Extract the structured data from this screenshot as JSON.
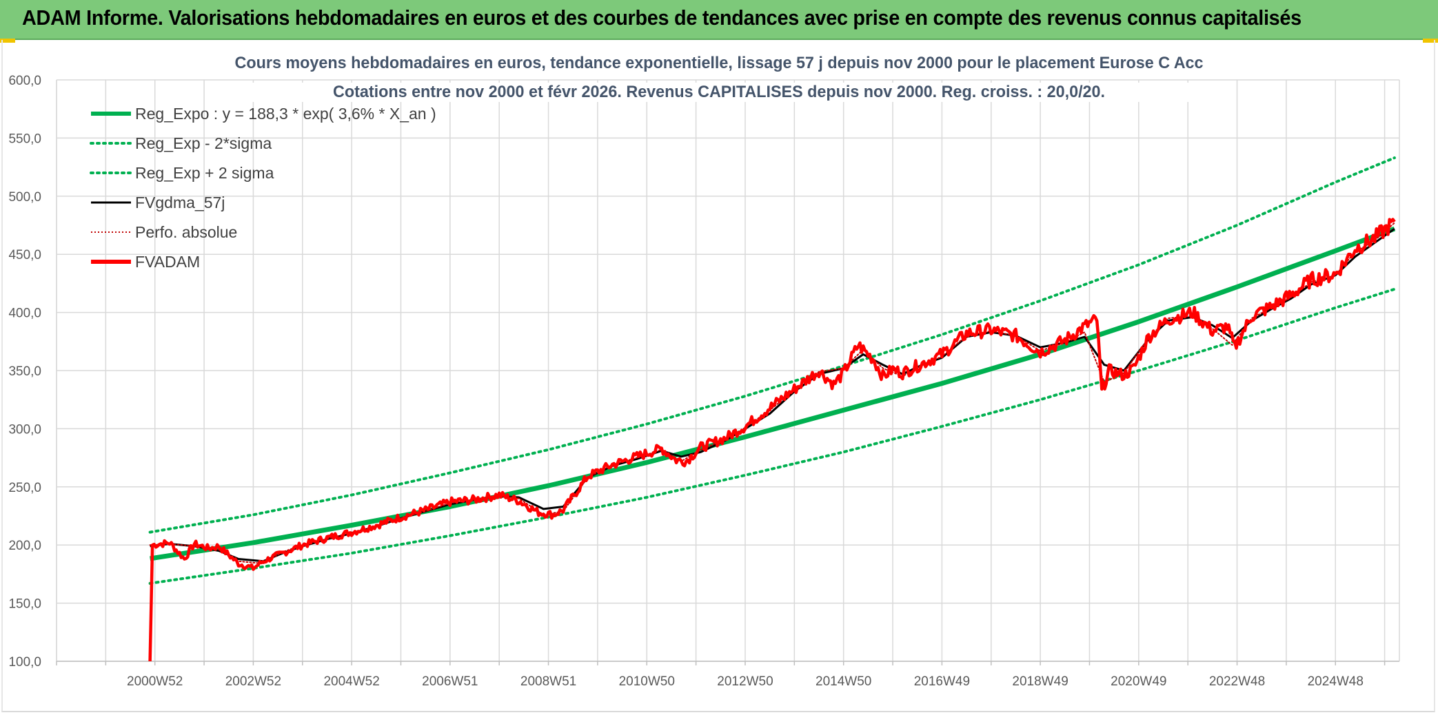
{
  "banner": {
    "title": "ADAM Informe. Valorisations hebdomadaires en euros et des courbes de tendances avec prise en compte des revenus connus capitalisés"
  },
  "colors": {
    "banner_bg": "#7dc97a",
    "trend": "#00b050",
    "band": "#00b050",
    "smoothed": "#000000",
    "perf": "#c00000",
    "fvadam": "#ff0000",
    "grid": "#d9d9d9"
  },
  "chart_data": {
    "type": "line",
    "title_lines": [
      "Cours moyens hebdomadaires en euros, tendance exponentielle, lissage 57 j depuis nov 2000 pour le placement Eurose C Acc",
      "Cotations entre nov 2000 et févr 2026. Revenus CAPITALISES depuis nov 2000. Reg. croiss. : 20,0/20."
    ],
    "ylim": [
      100,
      600
    ],
    "y_ticks": [
      "100,0",
      "150,0",
      "200,0",
      "250,0",
      "300,0",
      "350,0",
      "400,0",
      "450,0",
      "500,0",
      "550,0",
      "600,0"
    ],
    "xlim": [
      1999.0,
      2026.3
    ],
    "x_ticks": [
      {
        "label": "2000W52",
        "x": 2001.0
      },
      {
        "label": "2002W52",
        "x": 2003.0
      },
      {
        "label": "2004W52",
        "x": 2005.0
      },
      {
        "label": "2006W51",
        "x": 2007.0
      },
      {
        "label": "2008W51",
        "x": 2009.0
      },
      {
        "label": "2010W50",
        "x": 2011.0
      },
      {
        "label": "2012W50",
        "x": 2013.0
      },
      {
        "label": "2014W50",
        "x": 2015.0
      },
      {
        "label": "2016W49",
        "x": 2017.0
      },
      {
        "label": "2018W49",
        "x": 2019.0
      },
      {
        "label": "2020W49",
        "x": 2021.0
      },
      {
        "label": "2022W48",
        "x": 2023.0
      },
      {
        "label": "2024W48",
        "x": 2025.0
      }
    ],
    "legend": [
      {
        "label": "Reg_Expo : y = 188,3 * exp( 3,6% *  X_an )",
        "style": "thick",
        "color": "#00b050"
      },
      {
        "label": "Reg_Exp - 2*sigma",
        "style": "dotted",
        "color": "#00b050"
      },
      {
        "label": "Reg_Exp + 2 sigma",
        "style": "dotted",
        "color": "#00b050"
      },
      {
        "label": "FVgdma_57j",
        "style": "solid",
        "color": "#000000"
      },
      {
        "label": "Perfo. absolue",
        "style": "dotted-thin",
        "color": "#c00000"
      },
      {
        "label": "FVADAM",
        "style": "thick",
        "color": "#ff0000"
      }
    ],
    "series": [
      {
        "name": "Reg_Expo : y = 188,3 * exp( 3,6% *  X_an )",
        "x": [
          2000.9,
          2003.0,
          2005.0,
          2007.0,
          2009.0,
          2011.0,
          2013.0,
          2015.0,
          2017.0,
          2019.0,
          2021.0,
          2023.0,
          2025.0,
          2026.2
        ],
        "values": [
          188.3,
          202,
          217,
          233,
          251,
          271,
          293,
          316,
          339,
          364,
          392,
          422,
          453,
          472
        ]
      },
      {
        "name": "Reg_Exp - 2*sigma",
        "x": [
          2000.9,
          2003.0,
          2005.0,
          2007.0,
          2009.0,
          2011.0,
          2013.0,
          2015.0,
          2017.0,
          2019.0,
          2021.0,
          2023.0,
          2025.0,
          2026.2
        ],
        "values": [
          167,
          180,
          193,
          208,
          224,
          241,
          260,
          280,
          302,
          325,
          350,
          376,
          404,
          420
        ]
      },
      {
        "name": "Reg_Exp + 2 sigma",
        "x": [
          2000.9,
          2003.0,
          2005.0,
          2007.0,
          2009.0,
          2011.0,
          2013.0,
          2015.0,
          2017.0,
          2019.0,
          2021.0,
          2023.0,
          2025.0,
          2026.2
        ],
        "values": [
          211,
          226,
          243,
          262,
          282,
          304,
          328,
          354,
          381,
          410,
          441,
          475,
          512,
          533
        ]
      },
      {
        "name": "FVgdma_57j",
        "x": [
          2000.9,
          2001.3,
          2001.8,
          2002.3,
          2002.7,
          2003.2,
          2003.6,
          2004.0,
          2004.5,
          2005.0,
          2005.5,
          2006.0,
          2006.5,
          2007.0,
          2007.5,
          2008.0,
          2008.4,
          2008.9,
          2009.3,
          2009.8,
          2010.3,
          2010.8,
          2011.3,
          2011.7,
          2012.1,
          2012.6,
          2013.0,
          2013.5,
          2014.0,
          2014.5,
          2015.0,
          2015.4,
          2015.8,
          2016.2,
          2016.6,
          2017.0,
          2017.5,
          2018.0,
          2018.5,
          2019.0,
          2019.5,
          2019.9,
          2020.3,
          2020.7,
          2021.2,
          2021.6,
          2022.1,
          2022.5,
          2022.9,
          2023.3,
          2023.7,
          2024.1,
          2024.5,
          2025.0,
          2025.4,
          2025.8,
          2026.2
        ],
        "values": [
          199,
          201,
          199,
          195,
          188,
          186,
          193,
          199,
          205,
          210,
          216,
          223,
          229,
          235,
          239,
          242,
          241,
          231,
          233,
          258,
          268,
          274,
          281,
          276,
          280,
          290,
          300,
          313,
          332,
          347,
          352,
          364,
          355,
          347,
          355,
          361,
          379,
          383,
          380,
          370,
          374,
          379,
          355,
          350,
          377,
          393,
          396,
          389,
          378,
          393,
          403,
          412,
          424,
          432,
          448,
          460,
          472
        ]
      },
      {
        "name": "Perfo. absolue",
        "x": [
          2000.9,
          2001.3,
          2001.8,
          2002.3,
          2002.7,
          2003.2,
          2003.6,
          2004.0,
          2004.5,
          2005.0,
          2005.5,
          2006.0,
          2006.5,
          2007.0,
          2007.5,
          2008.0,
          2008.4,
          2008.9,
          2009.3,
          2009.8,
          2010.3,
          2010.8,
          2011.3,
          2011.7,
          2012.1,
          2012.6,
          2013.0,
          2013.5,
          2014.0,
          2014.5,
          2015.0,
          2015.4,
          2015.8,
          2016.2,
          2016.6,
          2017.0,
          2017.5,
          2018.0,
          2018.5,
          2019.0,
          2019.5,
          2019.9,
          2020.3,
          2020.7,
          2021.2,
          2021.6,
          2022.1,
          2022.5,
          2022.9,
          2023.3,
          2023.7,
          2024.1,
          2024.5,
          2025.0,
          2025.4,
          2025.8,
          2026.2
        ],
        "values": [
          200,
          201,
          199,
          196,
          186,
          184,
          194,
          200,
          205,
          211,
          216,
          223,
          229,
          236,
          239,
          243,
          240,
          226,
          229,
          258,
          269,
          275,
          282,
          272,
          282,
          291,
          301,
          316,
          333,
          349,
          352,
          368,
          352,
          345,
          355,
          362,
          380,
          384,
          380,
          367,
          374,
          383,
          340,
          348,
          378,
          395,
          397,
          386,
          372,
          395,
          404,
          413,
          426,
          432,
          452,
          462,
          477
        ]
      },
      {
        "name": "FVADAM",
        "x": [
          2000.9,
          2000.95,
          2001.3,
          2001.6,
          2001.8,
          2002.1,
          2002.3,
          2002.7,
          2003.0,
          2003.2,
          2003.6,
          2004.0,
          2004.5,
          2005.0,
          2005.5,
          2006.0,
          2006.5,
          2007.0,
          2007.5,
          2008.0,
          2008.4,
          2008.8,
          2009.1,
          2009.3,
          2009.8,
          2010.3,
          2010.8,
          2011.3,
          2011.6,
          2011.8,
          2012.1,
          2012.6,
          2013.0,
          2013.5,
          2014.0,
          2014.5,
          2014.8,
          2015.0,
          2015.3,
          2015.6,
          2015.8,
          2016.0,
          2016.2,
          2016.6,
          2017.0,
          2017.5,
          2018.0,
          2018.5,
          2019.0,
          2019.5,
          2019.9,
          2020.15,
          2020.25,
          2020.4,
          2020.7,
          2020.9,
          2021.2,
          2021.6,
          2022.1,
          2022.5,
          2022.8,
          2022.95,
          2023.3,
          2023.7,
          2024.1,
          2024.5,
          2025.0,
          2025.4,
          2025.8,
          2026.2
        ],
        "values": [
          100,
          200,
          202,
          188,
          201,
          197,
          199,
          184,
          180,
          186,
          193,
          200,
          206,
          211,
          217,
          224,
          230,
          237,
          239,
          243,
          238,
          228,
          226,
          230,
          259,
          269,
          276,
          283,
          273,
          272,
          284,
          292,
          302,
          318,
          334,
          350,
          338,
          348,
          372,
          360,
          345,
          351,
          348,
          356,
          364,
          382,
          385,
          380,
          366,
          376,
          388,
          394,
          332,
          350,
          346,
          352,
          379,
          394,
          400,
          384,
          388,
          370,
          397,
          405,
          415,
          428,
          433,
          455,
          464,
          478
        ]
      }
    ]
  }
}
